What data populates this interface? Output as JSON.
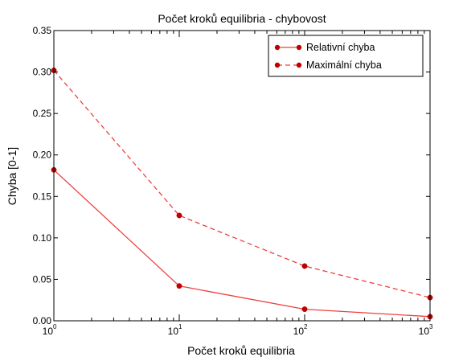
{
  "chart_data": {
    "type": "line",
    "title": "Počet kroků equilibria - chybovost",
    "xlabel": "Počet kroků equilibria",
    "ylabel": "Chyba [0-1]",
    "xscale": "log",
    "xlim": [
      1,
      1000
    ],
    "ylim": [
      0,
      0.35
    ],
    "x_ticks": [
      {
        "base": "10",
        "exp": "0",
        "value": 1
      },
      {
        "base": "10",
        "exp": "1",
        "value": 10
      },
      {
        "base": "10",
        "exp": "2",
        "value": 100
      },
      {
        "base": "10",
        "exp": "3",
        "value": 1000
      }
    ],
    "y_ticks": [
      {
        "label": "0.00",
        "value": 0
      },
      {
        "label": "0.05",
        "value": 0.05
      },
      {
        "label": "0.10",
        "value": 0.1
      },
      {
        "label": "0.15",
        "value": 0.15
      },
      {
        "label": "0.20",
        "value": 0.2
      },
      {
        "label": "0.25",
        "value": 0.25
      },
      {
        "label": "0.30",
        "value": 0.3
      },
      {
        "label": "0.35",
        "value": 0.35
      }
    ],
    "x": [
      1,
      10,
      100,
      1000
    ],
    "series": [
      {
        "name": "Relativní chyba",
        "values": [
          0.182,
          0.042,
          0.014,
          0.005
        ],
        "style": "solid",
        "color": "#ee4040",
        "marker_color": "#c00000"
      },
      {
        "name": "Maximální chyba",
        "values": [
          0.302,
          0.127,
          0.066,
          0.028
        ],
        "style": "dashed",
        "color": "#ee4040",
        "marker_color": "#c00000"
      }
    ],
    "legend_position": "top-right",
    "grid": false
  }
}
